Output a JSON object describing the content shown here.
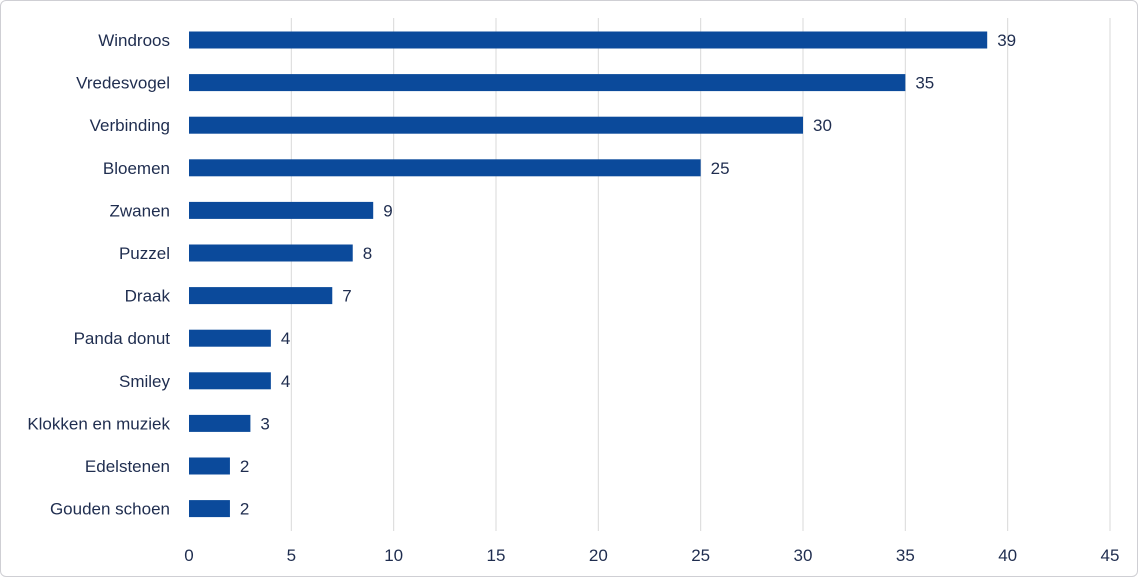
{
  "chart_data": {
    "type": "bar",
    "orientation": "horizontal",
    "categories": [
      "Windroos",
      "Vredesvogel",
      "Verbinding",
      "Bloemen",
      "Zwanen",
      "Puzzel",
      "Draak",
      "Panda donut",
      "Smiley",
      "Klokken en muziek",
      "Edelstenen",
      "Gouden schoen"
    ],
    "values": [
      39,
      35,
      30,
      25,
      9,
      8,
      7,
      4,
      4,
      3,
      2,
      2
    ],
    "xlim": [
      0,
      45
    ],
    "xticks": [
      "0",
      "5",
      "10",
      "15",
      "20",
      "25",
      "30",
      "35",
      "40",
      "45"
    ],
    "grid": "vertical",
    "bar_color": "#0b4a9b",
    "data_labels": true
  }
}
